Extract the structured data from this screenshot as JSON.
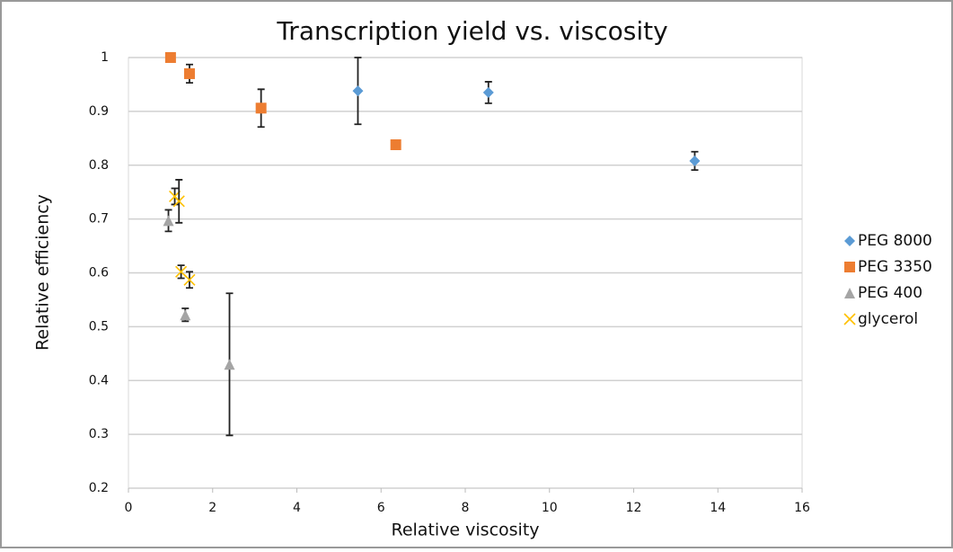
{
  "chart_data": {
    "type": "scatter",
    "title": "Transcription yield vs. viscosity",
    "x_label": "Relative viscosity",
    "y_label": "Relative efficiency",
    "xlim": [
      0,
      16
    ],
    "xticks": [
      0,
      2,
      4,
      6,
      8,
      10,
      12,
      14,
      16
    ],
    "ylim": [
      0.2,
      1
    ],
    "yticks": [
      0.2,
      0.3,
      0.4,
      0.5,
      0.6,
      0.7,
      0.8,
      0.9,
      1
    ],
    "grid": true,
    "legend": "right",
    "series": [
      {
        "name": "PEG 8000",
        "color": "#5b9bd5",
        "marker": "diamond",
        "x": [
          5.45,
          8.55,
          13.45
        ],
        "values": [
          0.938,
          0.935,
          0.808
        ],
        "errors": [
          0.062,
          0.02,
          0.017
        ]
      },
      {
        "name": "PEG 3350",
        "color": "#ed7d31",
        "marker": "square",
        "x": [
          1.0,
          1.45,
          3.15,
          6.35
        ],
        "values": [
          1.0,
          0.97,
          0.906,
          0.838
        ],
        "errors": [
          0,
          0.017,
          0.035,
          0
        ]
      },
      {
        "name": "PEG 400",
        "color": "#a5a5a5",
        "marker": "triangle",
        "x": [
          0.95,
          1.35,
          2.4
        ],
        "values": [
          0.697,
          0.522,
          0.43
        ],
        "errors": [
          0.02,
          0.012,
          0.132
        ]
      },
      {
        "name": "glycerol",
        "color": "#ffc000",
        "marker": "x",
        "x": [
          1.1,
          1.2,
          1.25,
          1.45
        ],
        "values": [
          0.742,
          0.733,
          0.602,
          0.587
        ],
        "errors": [
          0.015,
          0.04,
          0.012,
          0.015
        ]
      }
    ]
  }
}
